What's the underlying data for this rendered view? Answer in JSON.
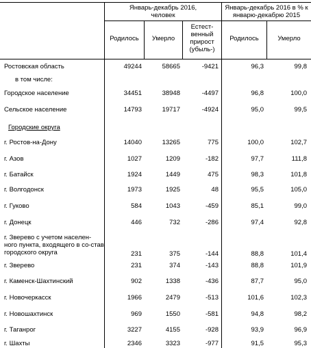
{
  "header": {
    "group1": "Январь-декабрь 2016, человек",
    "group2": "Январь-декабрь 2016 в % к январю-декабрю 2015",
    "born": "Родилось",
    "died": "Умерло",
    "natural": "Естест-венный прирост (убыль-)",
    "born_pct": "Родилось",
    "died_pct": "Умерло"
  },
  "rows": [
    {
      "label": "Ростовская область",
      "born": "49244",
      "died": "58665",
      "natural": "-9421",
      "born_pct": "96,3",
      "died_pct": "99,8"
    },
    {
      "label": "в том числе:"
    },
    {
      "label": "Городское население",
      "born": "34451",
      "died": "38948",
      "natural": "-4497",
      "born_pct": "96,8",
      "died_pct": "100,0"
    },
    {
      "label": "Сельское население",
      "born": "14793",
      "died": "19717",
      "natural": "-4924",
      "born_pct": "95,0",
      "died_pct": "99,5"
    },
    {
      "label": "Городские округа"
    },
    {
      "label": "г. Ростов-на-Дону",
      "born": "14040",
      "died": "13265",
      "natural": "775",
      "born_pct": "100,0",
      "died_pct": "102,7"
    },
    {
      "label": "г. Азов",
      "born": "1027",
      "died": "1209",
      "natural": "-182",
      "born_pct": "97,7",
      "died_pct": "111,8"
    },
    {
      "label": "г. Батайск",
      "born": "1924",
      "died": "1449",
      "natural": "475",
      "born_pct": "98,3",
      "died_pct": "101,8"
    },
    {
      "label": "г. Волгодонск",
      "born": "1973",
      "died": "1925",
      "natural": "48",
      "born_pct": "95,5",
      "died_pct": "105,0"
    },
    {
      "label": "г. Гуково",
      "born": "584",
      "died": "1043",
      "natural": "-459",
      "born_pct": "85,1",
      "died_pct": "99,0"
    },
    {
      "label": "г. Донецк",
      "born": "446",
      "died": "732",
      "natural": "-286",
      "born_pct": "97,4",
      "died_pct": "92,8"
    },
    {
      "label": "г. Зверево  с учетом населен-ного пункта, входящего в со-став городского округа",
      "born": "231",
      "died": "375",
      "natural": "-144",
      "born_pct": "88,8",
      "died_pct": "101,4"
    },
    {
      "label": "г. Зверево",
      "born": "231",
      "died": "374",
      "natural": "-143",
      "born_pct": "88,8",
      "died_pct": "101,9"
    },
    {
      "label": "г. Каменск-Шахтинский",
      "born": "902",
      "died": "1338",
      "natural": "-436",
      "born_pct": "87,7",
      "died_pct": "95,0"
    },
    {
      "label": "г. Новочеркасск",
      "born": "1966",
      "died": "2479",
      "natural": "-513",
      "born_pct": "101,6",
      "died_pct": "102,3"
    },
    {
      "label": "г. Новошахтинск",
      "born": "969",
      "died": "1550",
      "natural": "-581",
      "born_pct": "94,8",
      "died_pct": "98,2"
    },
    {
      "label": "г. Таганрог",
      "born": "3227",
      "died": "4155",
      "natural": "-928",
      "born_pct": "93,9",
      "died_pct": "96,9"
    },
    {
      "label": "г. Шахты",
      "born": "2346",
      "died": "3323",
      "natural": "-977",
      "born_pct": "91,5",
      "died_pct": "95,3"
    }
  ]
}
